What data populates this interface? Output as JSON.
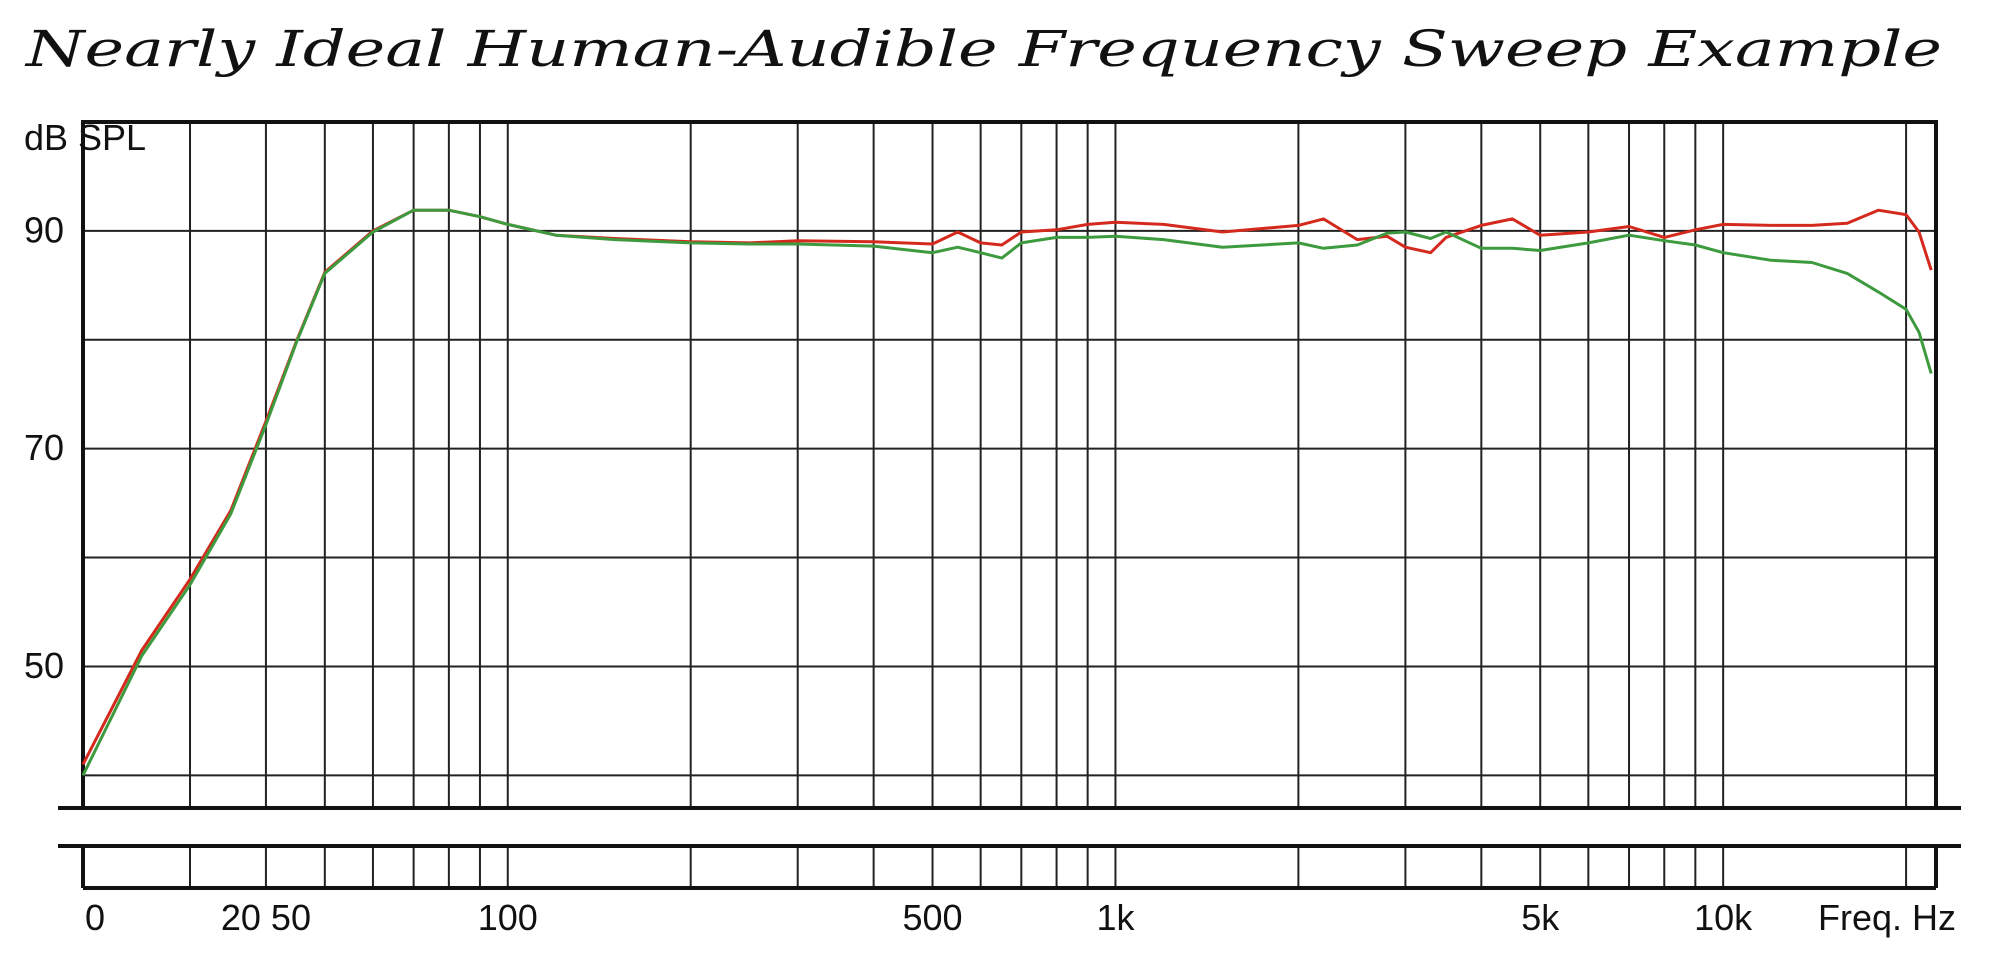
{
  "chart_data": {
    "type": "line",
    "title": "Nearly Ideal Human-Audible Frequency Sweep Example",
    "y_label": "dB SPL",
    "x_label": "Freq. Hz",
    "x_scale": "log",
    "xlim": [
      20,
      22400
    ],
    "ylim": [
      37,
      100
    ],
    "xticks": [
      {
        "value": 20,
        "label": "0"
      },
      {
        "value": 40,
        "label": "20 50"
      },
      100,
      500,
      {
        "value": 1000,
        "label": "1k"
      },
      {
        "value": 5000,
        "label": "5k"
      },
      {
        "value": 10000,
        "label": "10k"
      }
    ],
    "yticks": [
      50,
      70,
      90
    ],
    "xgrid": [
      30,
      40,
      50,
      60,
      70,
      80,
      90,
      100,
      200,
      300,
      400,
      500,
      600,
      700,
      800,
      900,
      1000,
      2000,
      3000,
      4000,
      5000,
      6000,
      7000,
      8000,
      9000,
      10000,
      20000
    ],
    "ygrid": [
      40,
      50,
      60,
      70,
      80,
      90
    ],
    "x": [
      20,
      25,
      30,
      35,
      40,
      45,
      50,
      60,
      70,
      80,
      90,
      100,
      120,
      150,
      200,
      250,
      300,
      400,
      500,
      550,
      600,
      650,
      700,
      800,
      900,
      1000,
      1200,
      1500,
      2000,
      2200,
      2500,
      2800,
      3000,
      3300,
      3500,
      4000,
      4500,
      5000,
      6000,
      7000,
      8000,
      9000,
      10000,
      12000,
      14000,
      16000,
      18000,
      20000,
      21000,
      22000
    ],
    "series": [
      {
        "color": "#d42a1e",
        "values": [
          41,
          51.5,
          58,
          64.3,
          72.5,
          80,
          86.2,
          90,
          91.9,
          91.9,
          91.3,
          90.6,
          89.6,
          89.3,
          89,
          88.9,
          89.1,
          89,
          88.8,
          89.9,
          88.9,
          88.7,
          89.9,
          90.1,
          90.6,
          90.8,
          90.6,
          89.9,
          90.5,
          91.1,
          89.2,
          89.5,
          88.5,
          88,
          89.4,
          90.5,
          91.1,
          89.6,
          89.9,
          90.4,
          89.4,
          90.1,
          90.6,
          90.5,
          90.5,
          90.7,
          91.9,
          91.5,
          89.9,
          86.4
        ]
      },
      {
        "color": "#3e9a3e",
        "values": [
          40,
          51,
          57.5,
          64,
          72.2,
          79.9,
          86.1,
          89.9,
          91.9,
          91.9,
          91.3,
          90.6,
          89.6,
          89.2,
          88.9,
          88.8,
          88.8,
          88.6,
          88,
          88.5,
          88,
          87.5,
          88.9,
          89.4,
          89.4,
          89.5,
          89.2,
          88.5,
          88.9,
          88.4,
          88.7,
          89.8,
          89.9,
          89.3,
          89.9,
          88.4,
          88.4,
          88.2,
          88.9,
          89.6,
          89.1,
          88.7,
          88,
          87.3,
          87.1,
          86.1,
          84.4,
          82.8,
          80.7,
          76.9
        ]
      }
    ]
  }
}
